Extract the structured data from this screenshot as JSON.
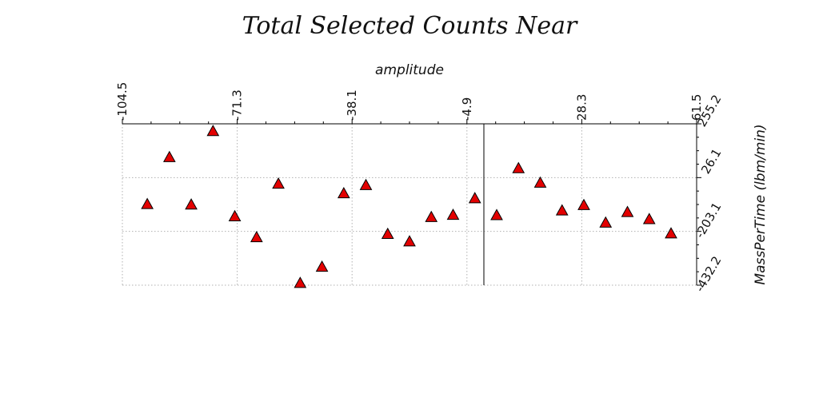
{
  "chart_data": {
    "type": "scatter",
    "title": "Total Selected Counts Near",
    "xlabel": "amplitude",
    "ylabel": "MassPerTime (lbm/min)",
    "x_ticks": [
      "-104.5",
      "-71.3",
      "-38.1",
      "-4.9",
      "28.3",
      "61.5"
    ],
    "y_ticks": [
      "255.2",
      "26.1",
      "-203.1",
      "-432.2"
    ],
    "xlim": [
      -104.5,
      61.5
    ],
    "ylim": [
      -432.2,
      255.2
    ],
    "x_axis_position": "top",
    "y_axis_position": "right",
    "vertical_reference_line_x": 0,
    "grid": true,
    "marker": "triangle",
    "marker_color": "#e30000",
    "points": [
      {
        "x": -97.3,
        "y": -87
      },
      {
        "x": -90.9,
        "y": 113
      },
      {
        "x": -84.6,
        "y": -89
      },
      {
        "x": -78.3,
        "y": 224
      },
      {
        "x": -72.0,
        "y": -139
      },
      {
        "x": -65.7,
        "y": -228
      },
      {
        "x": -59.4,
        "y": 0
      },
      {
        "x": -53.1,
        "y": -423
      },
      {
        "x": -46.8,
        "y": -354
      },
      {
        "x": -40.5,
        "y": -41
      },
      {
        "x": -34.1,
        "y": -6
      },
      {
        "x": -27.8,
        "y": -214
      },
      {
        "x": -21.5,
        "y": -246
      },
      {
        "x": -15.2,
        "y": -142
      },
      {
        "x": -8.9,
        "y": -133
      },
      {
        "x": -2.6,
        "y": -62
      },
      {
        "x": 3.7,
        "y": -134
      },
      {
        "x": 10.0,
        "y": 66
      },
      {
        "x": 16.3,
        "y": 4
      },
      {
        "x": 22.6,
        "y": -114
      },
      {
        "x": 28.9,
        "y": -91
      },
      {
        "x": 35.2,
        "y": -166
      },
      {
        "x": 41.5,
        "y": -121
      },
      {
        "x": 47.8,
        "y": -151
      },
      {
        "x": 54.1,
        "y": -212
      }
    ]
  }
}
